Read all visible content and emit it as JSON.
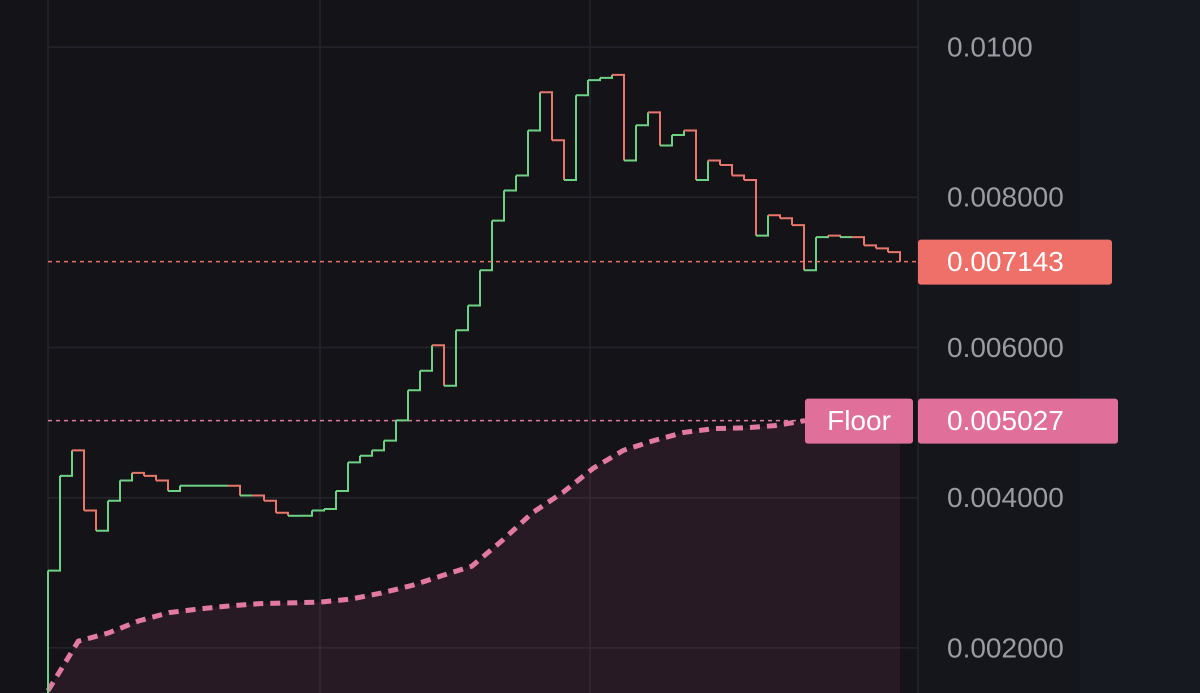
{
  "chart_data": {
    "type": "line",
    "ylim": [
      0.0014,
      0.010627
    ],
    "yticks": [
      {
        "value": 0.01,
        "label": "0.0100"
      },
      {
        "value": 0.008,
        "label": "0.008000"
      },
      {
        "value": 0.006,
        "label": "0.006000"
      },
      {
        "value": 0.004,
        "label": "0.004000"
      },
      {
        "value": 0.002,
        "label": "0.002000"
      }
    ],
    "grid": true,
    "series": [
      {
        "up_color": "#6fd184",
        "down_color": "#e8776b",
        "marker_color": "#ef7068",
        "values": [
          0.00303,
          0.00429,
          0.00463,
          0.00383,
          0.00356,
          0.00396,
          0.00423,
          0.00433,
          0.00429,
          0.00423,
          0.00409,
          0.00416,
          0.00416,
          0.00416,
          0.00416,
          0.00416,
          0.00403,
          0.00403,
          0.00396,
          0.0038,
          0.00376,
          0.00376,
          0.00383,
          0.00385,
          0.00409,
          0.00447,
          0.00456,
          0.00463,
          0.00476,
          0.00503,
          0.00543,
          0.00569,
          0.00603,
          0.00549,
          0.00623,
          0.00656,
          0.00703,
          0.00769,
          0.00809,
          0.00829,
          0.00889,
          0.0094,
          0.00876,
          0.00823,
          0.00936,
          0.00956,
          0.00959,
          0.00963,
          0.00849,
          0.00896,
          0.00913,
          0.00869,
          0.00883,
          0.00889,
          0.00823,
          0.00849,
          0.00843,
          0.00829,
          0.00823,
          0.00749,
          0.00776,
          0.00772,
          0.00763,
          0.00703,
          0.00747,
          0.00749,
          0.00747,
          0.00747,
          0.00736,
          0.00732,
          0.00727,
          0.007143
        ]
      },
      {
        "name": "Floor",
        "color": "#e27aa0",
        "values": [
          0.00143,
          0.00209,
          0.0022,
          0.00236,
          0.00247,
          0.00252,
          0.00256,
          0.00259,
          0.0026,
          0.00261,
          0.00265,
          0.00273,
          0.00283,
          0.00296,
          0.00309,
          0.00343,
          0.0038,
          0.00407,
          0.00439,
          0.00463,
          0.00476,
          0.00487,
          0.00492,
          0.00493,
          0.00496,
          0.005027
        ]
      }
    ]
  }
}
